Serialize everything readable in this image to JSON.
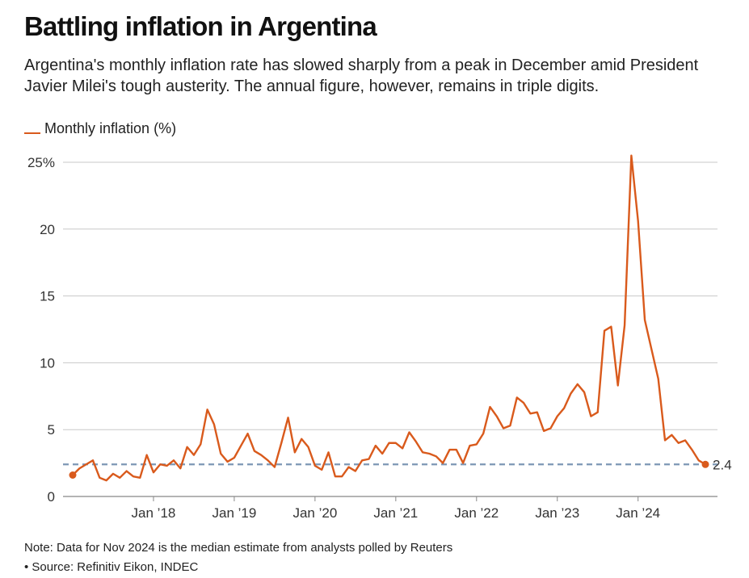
{
  "header": {
    "title": "Battling inflation in Argentina",
    "subtitle": "Argentina's monthly inflation rate has slowed sharply from a peak in December amid President Javier Milei's tough austerity. The annual figure, however, remains in triple digits."
  },
  "footer": {
    "note": "Note: Data for Nov 2024 is the median estimate from analysts polled by Reuters",
    "source": "• Source: Refinitiv Eikon, INDEC"
  },
  "colors": {
    "series": "#d95a1c",
    "reference": "#7d97b5",
    "grid": "#c8c8c8",
    "axis": "#888888"
  },
  "chart_data": {
    "type": "line",
    "title": "Battling inflation in Argentina",
    "xlabel": "",
    "ylabel": "",
    "ylim": [
      0,
      25
    ],
    "yticks": [
      {
        "value": 0,
        "label": "0"
      },
      {
        "value": 5,
        "label": "5"
      },
      {
        "value": 10,
        "label": "10"
      },
      {
        "value": 15,
        "label": "15"
      },
      {
        "value": 20,
        "label": "20"
      },
      {
        "value": 25,
        "label": "25%"
      }
    ],
    "xticks": [
      {
        "index": 12,
        "label": "Jan ’18"
      },
      {
        "index": 24,
        "label": "Jan ’19"
      },
      {
        "index": 36,
        "label": "Jan ’20"
      },
      {
        "index": 48,
        "label": "Jan ’21"
      },
      {
        "index": 60,
        "label": "Jan ’22"
      },
      {
        "index": 72,
        "label": "Jan ’23"
      },
      {
        "index": 84,
        "label": "Jan ’24"
      }
    ],
    "grid": true,
    "legend": "top-left",
    "series": [
      {
        "name": "Monthly inflation (%)",
        "start": "Jan 2017",
        "end": "Nov 2024",
        "values": [
          1.6,
          2.1,
          2.4,
          2.7,
          1.4,
          1.2,
          1.7,
          1.4,
          1.9,
          1.5,
          1.4,
          3.1,
          1.8,
          2.4,
          2.3,
          2.7,
          2.1,
          3.7,
          3.1,
          3.9,
          6.5,
          5.4,
          3.2,
          2.6,
          2.9,
          3.8,
          4.7,
          3.4,
          3.1,
          2.7,
          2.2,
          4.0,
          5.9,
          3.3,
          4.3,
          3.7,
          2.3,
          2.0,
          3.3,
          1.5,
          1.5,
          2.2,
          1.9,
          2.7,
          2.8,
          3.8,
          3.2,
          4.0,
          4.0,
          3.6,
          4.8,
          4.1,
          3.3,
          3.2,
          3.0,
          2.5,
          3.5,
          3.5,
          2.5,
          3.8,
          3.9,
          4.7,
          6.7,
          6.0,
          5.1,
          5.3,
          7.4,
          7.0,
          6.2,
          6.3,
          4.9,
          5.1,
          6.0,
          6.6,
          7.7,
          8.4,
          7.8,
          6.0,
          6.3,
          12.4,
          12.7,
          8.3,
          12.8,
          25.5,
          20.6,
          13.2,
          11.0,
          8.8,
          4.2,
          4.6,
          4.0,
          4.2,
          3.5,
          2.7,
          2.4
        ]
      }
    ],
    "reference_line": {
      "value": 2.4,
      "label": "2.4"
    }
  }
}
